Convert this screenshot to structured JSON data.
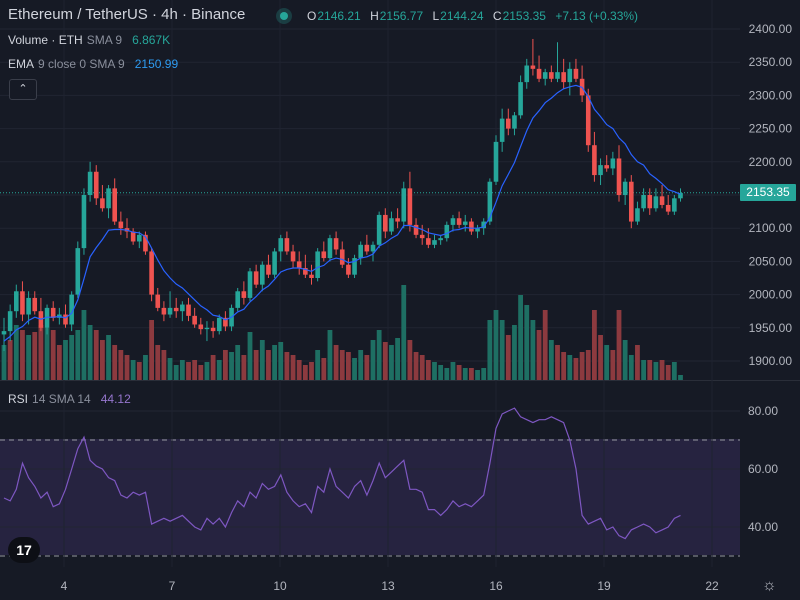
{
  "header": {
    "symbol": "Ethereum / TetherUS · 4h · Binance",
    "ohlc": {
      "o_label": "O",
      "o": "2146.21",
      "h_label": "H",
      "h": "2156.77",
      "l_label": "L",
      "l": "2144.24",
      "c_label": "C",
      "c": "2153.35",
      "change": "+7.13 (+0.33%)"
    }
  },
  "legend": {
    "volume": {
      "name": "Volume",
      "sep": "·",
      "unit": "ETH",
      "params": "SMA 9",
      "value": "6.867K"
    },
    "ema": {
      "name": "EMA",
      "params": "9 close 0 SMA 9",
      "value": "2150.99"
    },
    "rsi": {
      "name": "RSI",
      "params": "14 SMA 14",
      "value": "44.12"
    }
  },
  "collapse_icon": "chevron-up-icon",
  "price_label": "2153.35",
  "colors": {
    "up": "#26a69a",
    "down": "#ef5350",
    "ema": "#2962ff",
    "rsi": "#7e57c2",
    "background": "#161a25"
  },
  "chart_data": [
    {
      "type": "candlestick",
      "title": "Ethereum / TetherUS · 4h · Binance",
      "price_axis_ticks": [
        "2400.00",
        "2350.00",
        "2300.00",
        "2250.00",
        "2200.00",
        "2150.00",
        "2100.00",
        "2050.00",
        "2000.00",
        "1950.00",
        "1900.00"
      ],
      "time_axis_ticks": [
        "4",
        "7",
        "10",
        "13",
        "16",
        "19",
        "22"
      ],
      "ylim": [
        1875,
        2410
      ],
      "grid": true,
      "last_price": 2153.35,
      "candles": [
        [
          1940,
          1965,
          1915,
          1945
        ],
        [
          1945,
          1985,
          1930,
          1975
        ],
        [
          1975,
          2015,
          1965,
          2005
        ],
        [
          2005,
          2020,
          1960,
          1970
        ],
        [
          1970,
          2005,
          1955,
          1995
        ],
        [
          1995,
          2005,
          1970,
          1975
        ],
        [
          1975,
          1995,
          1945,
          1950
        ],
        [
          1950,
          1985,
          1940,
          1980
        ],
        [
          1980,
          1990,
          1960,
          1965
        ],
        [
          1965,
          1980,
          1955,
          1970
        ],
        [
          1970,
          1985,
          1950,
          1955
        ],
        [
          1955,
          2005,
          1945,
          2000
        ],
        [
          2000,
          2080,
          1995,
          2070
        ],
        [
          2070,
          2160,
          2060,
          2150
        ],
        [
          2150,
          2200,
          2140,
          2185
        ],
        [
          2185,
          2195,
          2135,
          2145
        ],
        [
          2145,
          2165,
          2125,
          2130
        ],
        [
          2130,
          2165,
          2115,
          2160
        ],
        [
          2160,
          2175,
          2105,
          2110
        ],
        [
          2110,
          2125,
          2090,
          2100
        ],
        [
          2100,
          2115,
          2085,
          2095
        ],
        [
          2095,
          2100,
          2075,
          2080
        ],
        [
          2080,
          2095,
          2070,
          2090
        ],
        [
          2090,
          2095,
          2060,
          2065
        ],
        [
          2065,
          2070,
          1990,
          2000
        ],
        [
          2000,
          2010,
          1975,
          1980
        ],
        [
          1980,
          1990,
          1960,
          1970
        ],
        [
          1970,
          2005,
          1965,
          1980
        ],
        [
          1980,
          1995,
          1965,
          1975
        ],
        [
          1975,
          1990,
          1960,
          1985
        ],
        [
          1985,
          1995,
          1960,
          1968
        ],
        [
          1968,
          1980,
          1950,
          1955
        ],
        [
          1955,
          1965,
          1940,
          1948
        ],
        [
          1948,
          1960,
          1930,
          1950
        ],
        [
          1950,
          1960,
          1935,
          1945
        ],
        [
          1945,
          1970,
          1940,
          1965
        ],
        [
          1965,
          1975,
          1945,
          1952
        ],
        [
          1952,
          1985,
          1945,
          1980
        ],
        [
          1980,
          2010,
          1975,
          2005
        ],
        [
          2005,
          2020,
          1985,
          1995
        ],
        [
          1995,
          2040,
          1990,
          2035
        ],
        [
          2035,
          2045,
          2010,
          2015
        ],
        [
          2015,
          2050,
          2005,
          2045
        ],
        [
          2045,
          2060,
          2025,
          2030
        ],
        [
          2030,
          2070,
          2025,
          2065
        ],
        [
          2065,
          2090,
          2050,
          2085
        ],
        [
          2085,
          2095,
          2060,
          2065
        ],
        [
          2065,
          2075,
          2040,
          2050
        ],
        [
          2050,
          2065,
          2030,
          2040
        ],
        [
          2040,
          2060,
          2025,
          2030
        ],
        [
          2030,
          2045,
          2015,
          2025
        ],
        [
          2025,
          2070,
          2020,
          2065
        ],
        [
          2065,
          2080,
          2050,
          2055
        ],
        [
          2055,
          2090,
          2050,
          2085
        ],
        [
          2085,
          2095,
          2060,
          2068
        ],
        [
          2068,
          2080,
          2040,
          2045
        ],
        [
          2045,
          2055,
          2025,
          2030
        ],
        [
          2030,
          2060,
          2025,
          2055
        ],
        [
          2055,
          2080,
          2045,
          2075
        ],
        [
          2075,
          2090,
          2060,
          2065
        ],
        [
          2065,
          2080,
          2050,
          2075
        ],
        [
          2075,
          2125,
          2070,
          2120
        ],
        [
          2120,
          2130,
          2085,
          2095
        ],
        [
          2095,
          2125,
          2090,
          2115
        ],
        [
          2115,
          2130,
          2100,
          2110
        ],
        [
          2110,
          2170,
          2100,
          2160
        ],
        [
          2160,
          2185,
          2095,
          2105
        ],
        [
          2105,
          2115,
          2085,
          2090
        ],
        [
          2090,
          2105,
          2075,
          2085
        ],
        [
          2085,
          2100,
          2070,
          2075
        ],
        [
          2075,
          2090,
          2070,
          2082
        ],
        [
          2082,
          2090,
          2075,
          2085
        ],
        [
          2085,
          2110,
          2080,
          2105
        ],
        [
          2105,
          2120,
          2095,
          2115
        ],
        [
          2115,
          2125,
          2100,
          2105
        ],
        [
          2105,
          2120,
          2095,
          2110
        ],
        [
          2110,
          2115,
          2090,
          2095
        ],
        [
          2095,
          2105,
          2085,
          2100
        ],
        [
          2100,
          2115,
          2090,
          2110
        ],
        [
          2110,
          2175,
          2105,
          2170
        ],
        [
          2170,
          2240,
          2165,
          2230
        ],
        [
          2230,
          2280,
          2215,
          2265
        ],
        [
          2265,
          2280,
          2240,
          2250
        ],
        [
          2250,
          2275,
          2240,
          2270
        ],
        [
          2270,
          2330,
          2265,
          2320
        ],
        [
          2320,
          2355,
          2310,
          2345
        ],
        [
          2345,
          2385,
          2330,
          2340
        ],
        [
          2340,
          2360,
          2320,
          2325
        ],
        [
          2325,
          2340,
          2315,
          2335
        ],
        [
          2335,
          2345,
          2320,
          2325
        ],
        [
          2325,
          2380,
          2320,
          2335
        ],
        [
          2335,
          2355,
          2310,
          2320
        ],
        [
          2320,
          2350,
          2300,
          2340
        ],
        [
          2340,
          2355,
          2320,
          2325
        ],
        [
          2325,
          2345,
          2290,
          2300
        ],
        [
          2300,
          2310,
          2215,
          2225
        ],
        [
          2225,
          2245,
          2170,
          2180
        ],
        [
          2180,
          2205,
          2165,
          2195
        ],
        [
          2195,
          2210,
          2185,
          2190
        ],
        [
          2190,
          2215,
          2180,
          2205
        ],
        [
          2205,
          2225,
          2140,
          2150
        ],
        [
          2150,
          2175,
          2135,
          2170
        ],
        [
          2170,
          2180,
          2100,
          2110
        ],
        [
          2110,
          2140,
          2105,
          2130
        ],
        [
          2130,
          2160,
          2125,
          2150
        ],
        [
          2150,
          2160,
          2120,
          2130
        ],
        [
          2130,
          2160,
          2125,
          2148
        ],
        [
          2148,
          2165,
          2130,
          2135
        ],
        [
          2135,
          2150,
          2120,
          2125
        ],
        [
          2125,
          2150,
          2120,
          2145
        ],
        [
          2145,
          2160,
          2140,
          2153
        ]
      ],
      "ema_9": [
        1930,
        1937,
        1947,
        1952,
        1961,
        1966,
        1963,
        1966,
        1966,
        1967,
        1965,
        1972,
        1992,
        2024,
        2057,
        2071,
        2083,
        2097,
        2098,
        2098,
        2097,
        2094,
        2093,
        2087,
        2070,
        2052,
        2036,
        2025,
        2016,
        2010,
        2001,
        1992,
        1983,
        1977,
        1969,
        1967,
        1962,
        1966,
        1974,
        1978,
        1989,
        1997,
        2007,
        2013,
        2023,
        2034,
        2038,
        2040,
        2040,
        2038,
        2035,
        2041,
        2044,
        2052,
        2055,
        2053,
        2048,
        2050,
        2055,
        2057,
        2061,
        2073,
        2078,
        2085,
        2090,
        2104,
        2104,
        2101,
        2098,
        2093,
        2091,
        2089,
        2092,
        2097,
        2098,
        2101,
        2100,
        2100,
        2102,
        2116,
        2139,
        2164,
        2181,
        2199,
        2223,
        2247,
        2266,
        2277,
        2289,
        2296,
        2304,
        2310,
        2313,
        2315,
        2312,
        2298,
        2279,
        2268,
        2256,
        2250,
        2236,
        2227,
        2211,
        2200,
        2195,
        2182,
        2175,
        2167,
        2158,
        2155,
        2151
      ],
      "volume": [
        [
          "u",
          0.35
        ],
        [
          "d",
          0.4
        ],
        [
          "u",
          0.55
        ],
        [
          "d",
          0.5
        ],
        [
          "u",
          0.45
        ],
        [
          "d",
          0.48
        ],
        [
          "d",
          0.55
        ],
        [
          "u",
          0.52
        ],
        [
          "d",
          0.5
        ],
        [
          "d",
          0.35
        ],
        [
          "u",
          0.4
        ],
        [
          "u",
          0.45
        ],
        [
          "u",
          0.5
        ],
        [
          "u",
          0.7
        ],
        [
          "u",
          0.55
        ],
        [
          "d",
          0.5
        ],
        [
          "d",
          0.4
        ],
        [
          "u",
          0.45
        ],
        [
          "d",
          0.35
        ],
        [
          "d",
          0.3
        ],
        [
          "d",
          0.25
        ],
        [
          "u",
          0.2
        ],
        [
          "d",
          0.18
        ],
        [
          "u",
          0.25
        ],
        [
          "d",
          0.6
        ],
        [
          "d",
          0.35
        ],
        [
          "d",
          0.3
        ],
        [
          "u",
          0.22
        ],
        [
          "u",
          0.15
        ],
        [
          "u",
          0.2
        ],
        [
          "d",
          0.18
        ],
        [
          "d",
          0.2
        ],
        [
          "d",
          0.15
        ],
        [
          "u",
          0.18
        ],
        [
          "d",
          0.25
        ],
        [
          "u",
          0.2
        ],
        [
          "d",
          0.3
        ],
        [
          "u",
          0.28
        ],
        [
          "u",
          0.35
        ],
        [
          "d",
          0.25
        ],
        [
          "u",
          0.48
        ],
        [
          "d",
          0.3
        ],
        [
          "u",
          0.4
        ],
        [
          "d",
          0.3
        ],
        [
          "u",
          0.35
        ],
        [
          "u",
          0.38
        ],
        [
          "d",
          0.28
        ],
        [
          "d",
          0.25
        ],
        [
          "d",
          0.2
        ],
        [
          "d",
          0.15
        ],
        [
          "d",
          0.18
        ],
        [
          "u",
          0.3
        ],
        [
          "d",
          0.22
        ],
        [
          "u",
          0.5
        ],
        [
          "d",
          0.35
        ],
        [
          "d",
          0.3
        ],
        [
          "d",
          0.28
        ],
        [
          "u",
          0.22
        ],
        [
          "u",
          0.3
        ],
        [
          "d",
          0.25
        ],
        [
          "u",
          0.4
        ],
        [
          "u",
          0.5
        ],
        [
          "d",
          0.38
        ],
        [
          "u",
          0.35
        ],
        [
          "u",
          0.42
        ],
        [
          "u",
          0.95
        ],
        [
          "d",
          0.4
        ],
        [
          "d",
          0.28
        ],
        [
          "d",
          0.25
        ],
        [
          "d",
          0.2
        ],
        [
          "u",
          0.18
        ],
        [
          "u",
          0.15
        ],
        [
          "u",
          0.12
        ],
        [
          "u",
          0.18
        ],
        [
          "d",
          0.15
        ],
        [
          "u",
          0.12
        ],
        [
          "d",
          0.12
        ],
        [
          "u",
          0.1
        ],
        [
          "u",
          0.12
        ],
        [
          "u",
          0.6
        ],
        [
          "u",
          0.7
        ],
        [
          "u",
          0.6
        ],
        [
          "d",
          0.45
        ],
        [
          "u",
          0.55
        ],
        [
          "u",
          0.85
        ],
        [
          "u",
          0.75
        ],
        [
          "u",
          0.6
        ],
        [
          "d",
          0.5
        ],
        [
          "d",
          0.7
        ],
        [
          "u",
          0.4
        ],
        [
          "d",
          0.35
        ],
        [
          "d",
          0.28
        ],
        [
          "u",
          0.25
        ],
        [
          "d",
          0.22
        ],
        [
          "d",
          0.28
        ],
        [
          "d",
          0.3
        ],
        [
          "d",
          0.7
        ],
        [
          "d",
          0.45
        ],
        [
          "u",
          0.35
        ],
        [
          "d",
          0.3
        ],
        [
          "d",
          0.7
        ],
        [
          "u",
          0.4
        ],
        [
          "u",
          0.25
        ],
        [
          "d",
          0.35
        ],
        [
          "u",
          0.2
        ],
        [
          "d",
          0.2
        ],
        [
          "u",
          0.18
        ],
        [
          "d",
          0.2
        ],
        [
          "d",
          0.15
        ],
        [
          "u",
          0.18
        ],
        [
          "u",
          0.05
        ]
      ]
    },
    {
      "type": "line",
      "title": "RSI 14 SMA 14",
      "y_axis_ticks": [
        "80.00",
        "60.00",
        "40.00"
      ],
      "ylim": [
        30,
        85
      ],
      "bands": [
        30,
        70
      ],
      "last_value": 44.12,
      "values": [
        50,
        49,
        53,
        62,
        57,
        54,
        50,
        52,
        47,
        48,
        53,
        60,
        67,
        71,
        63,
        61,
        60,
        57,
        56,
        51,
        50,
        52,
        51,
        52,
        41,
        42,
        43,
        42,
        43,
        44,
        42,
        40,
        39,
        43,
        41,
        43,
        40,
        45,
        49,
        47,
        52,
        50,
        55,
        53,
        54,
        58,
        52,
        49,
        47,
        48,
        45,
        54,
        52,
        60,
        54,
        52,
        50,
        54,
        56,
        51,
        56,
        62,
        57,
        59,
        61,
        63,
        53,
        53,
        52,
        46,
        46,
        44,
        46,
        49,
        47,
        48,
        47,
        49,
        51,
        62,
        74,
        79,
        80,
        81,
        78,
        77,
        76,
        77,
        77,
        78,
        77,
        76,
        70,
        60,
        44,
        41,
        42,
        43,
        39,
        40,
        37,
        36,
        39,
        40,
        41,
        40,
        38,
        39,
        40,
        43,
        44
      ]
    }
  ]
}
